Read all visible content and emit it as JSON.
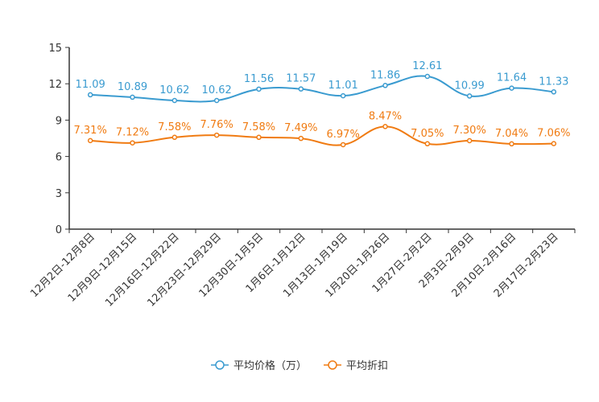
{
  "chart_data": {
    "type": "line",
    "title": "",
    "xlabel": "",
    "ylabel": "",
    "ylim": [
      0,
      15
    ],
    "yticks": [
      0,
      3,
      6,
      9,
      12,
      15
    ],
    "grid": false,
    "legend_position": "bottom-center",
    "categories": [
      "12月2日-12月8日",
      "12月9日-12月15日",
      "12月16日-12月22日",
      "12月23日-12月29日",
      "12月30日-1月5日",
      "1月6日-1月12日",
      "1月13日-1月19日",
      "1月20日-1月26日",
      "1月27日-2月2日",
      "2月3日-2月9日",
      "2月10日-2月16日",
      "2月17日-2月23日"
    ],
    "series": [
      {
        "name": "平均价格（万）",
        "color": "#3a9bd0",
        "values": [
          11.09,
          10.89,
          10.62,
          10.62,
          11.56,
          11.57,
          11.01,
          11.86,
          12.61,
          10.99,
          11.64,
          11.33
        ],
        "labels": [
          "11.09",
          "10.89",
          "10.62",
          "10.62",
          "11.56",
          "11.57",
          "11.01",
          "11.86",
          "12.61",
          "10.99",
          "11.64",
          "11.33"
        ]
      },
      {
        "name": "平均折扣",
        "color": "#f07b12",
        "values": [
          7.31,
          7.12,
          7.58,
          7.76,
          7.58,
          7.49,
          6.97,
          8.47,
          7.05,
          7.3,
          7.04,
          7.06
        ],
        "labels": [
          "7.31%",
          "7.12%",
          "7.58%",
          "7.76%",
          "7.58%",
          "7.49%",
          "6.97%",
          "8.47%",
          "7.05%",
          "7.30%",
          "7.04%",
          "7.06%"
        ]
      }
    ]
  }
}
